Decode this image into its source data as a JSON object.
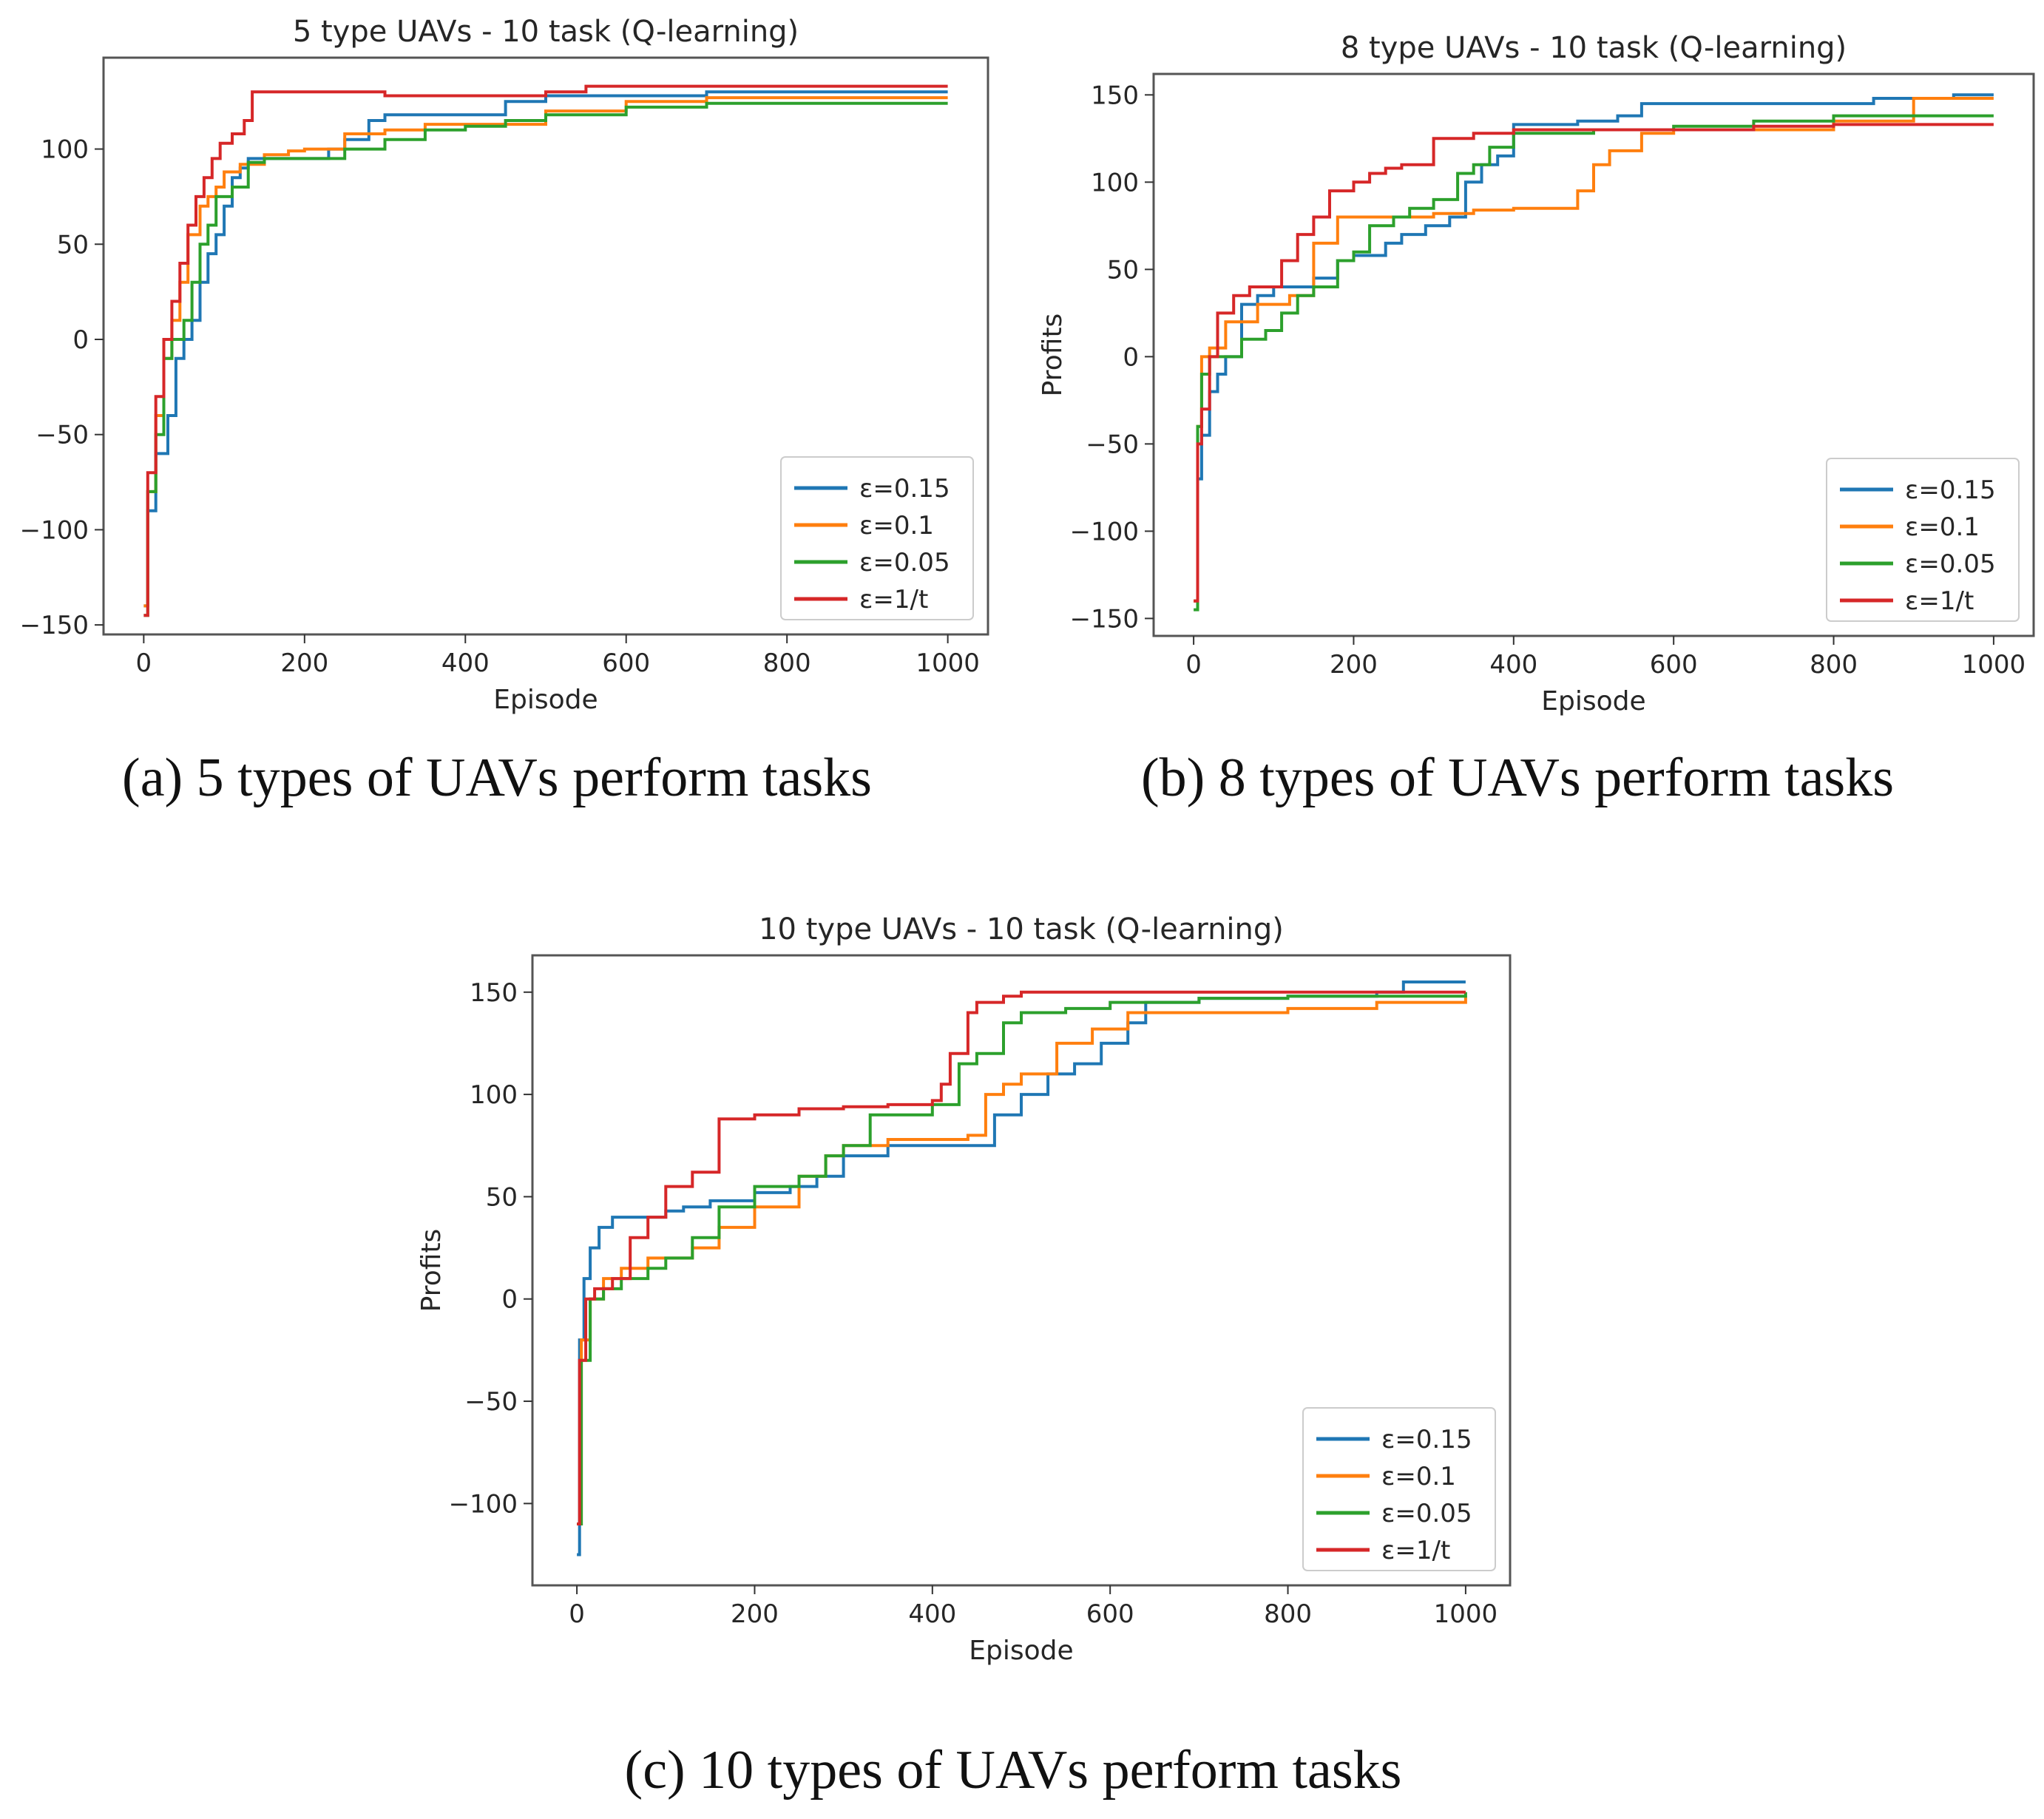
{
  "figure": {
    "captions": [
      "(a) 5 types of UAVs perform tasks",
      "(b) 8 types of UAVs perform tasks",
      "(c) 10 types of UAVs perform tasks"
    ]
  },
  "colors": {
    "series": [
      "#1f77b4",
      "#ff7f0e",
      "#2ca02c",
      "#d62728"
    ]
  },
  "chart_data": [
    {
      "type": "line",
      "title": "5 type UAVs - 10 task (Q-learning)",
      "xlabel": "Episode",
      "ylabel": "",
      "xlim": [
        -50,
        1050
      ],
      "ylim": [
        -155,
        148
      ],
      "xticks": [
        0,
        200,
        400,
        600,
        800,
        1000
      ],
      "yticks": [
        -150,
        -100,
        -50,
        0,
        50,
        100
      ],
      "legend_position": "lower right",
      "series": [
        {
          "name": "ε=0.15",
          "x": [
            0,
            5,
            15,
            30,
            40,
            50,
            60,
            70,
            80,
            90,
            100,
            110,
            120,
            130,
            200,
            230,
            250,
            280,
            300,
            450,
            500,
            600,
            700,
            1000
          ],
          "y": [
            -140,
            -90,
            -60,
            -40,
            -10,
            0,
            10,
            30,
            45,
            55,
            70,
            85,
            90,
            95,
            95,
            100,
            105,
            115,
            118,
            125,
            128,
            128,
            130,
            130
          ]
        },
        {
          "name": "ε=0.1",
          "x": [
            0,
            5,
            15,
            25,
            35,
            45,
            55,
            70,
            80,
            90,
            100,
            120,
            150,
            180,
            200,
            250,
            300,
            350,
            400,
            500,
            600,
            700,
            1000
          ],
          "y": [
            -140,
            -80,
            -40,
            -10,
            10,
            30,
            55,
            70,
            75,
            80,
            88,
            92,
            97,
            99,
            100,
            108,
            110,
            113,
            113,
            120,
            125,
            127,
            127
          ]
        },
        {
          "name": "ε=0.05",
          "x": [
            0,
            5,
            15,
            25,
            35,
            50,
            60,
            70,
            80,
            90,
            110,
            130,
            150,
            200,
            250,
            300,
            350,
            400,
            450,
            500,
            600,
            700,
            1000
          ],
          "y": [
            -145,
            -80,
            -50,
            -10,
            0,
            10,
            30,
            50,
            60,
            75,
            80,
            93,
            95,
            95,
            100,
            105,
            110,
            112,
            115,
            118,
            122,
            124,
            124
          ]
        },
        {
          "name": "ε=1/t",
          "x": [
            0,
            5,
            15,
            25,
            35,
            45,
            55,
            65,
            75,
            85,
            95,
            110,
            125,
            135,
            200,
            300,
            400,
            500,
            550,
            700,
            1000
          ],
          "y": [
            -145,
            -70,
            -30,
            0,
            20,
            40,
            60,
            75,
            85,
            95,
            103,
            108,
            115,
            130,
            130,
            128,
            128,
            130,
            133,
            133,
            133
          ]
        }
      ]
    },
    {
      "type": "line",
      "title": "8 type UAVs - 10 task (Q-learning)",
      "xlabel": "Episode",
      "ylabel": "Profits",
      "xlim": [
        -50,
        1050
      ],
      "ylim": [
        -160,
        162
      ],
      "xticks": [
        0,
        200,
        400,
        600,
        800,
        1000
      ],
      "yticks": [
        -150,
        -100,
        -50,
        0,
        50,
        100,
        150
      ],
      "legend_position": "lower right",
      "series": [
        {
          "name": "ε=0.15",
          "x": [
            0,
            5,
            10,
            20,
            30,
            40,
            60,
            80,
            100,
            120,
            150,
            180,
            200,
            240,
            260,
            290,
            320,
            340,
            360,
            380,
            400,
            480,
            530,
            560,
            650,
            750,
            850,
            950,
            1000
          ],
          "y": [
            -140,
            -70,
            -45,
            -20,
            -10,
            0,
            30,
            35,
            40,
            40,
            45,
            55,
            58,
            65,
            70,
            75,
            80,
            100,
            110,
            115,
            133,
            135,
            138,
            145,
            145,
            145,
            148,
            150,
            150
          ]
        },
        {
          "name": "ε=0.1",
          "x": [
            0,
            5,
            10,
            20,
            40,
            80,
            120,
            150,
            180,
            200,
            250,
            300,
            350,
            400,
            460,
            480,
            500,
            520,
            560,
            600,
            800,
            900,
            1000
          ],
          "y": [
            -140,
            -40,
            0,
            5,
            20,
            30,
            35,
            65,
            80,
            80,
            80,
            82,
            84,
            85,
            85,
            95,
            110,
            118,
            128,
            130,
            135,
            148,
            148
          ]
        },
        {
          "name": "ε=0.05",
          "x": [
            0,
            5,
            10,
            20,
            40,
            60,
            90,
            110,
            130,
            150,
            180,
            200,
            220,
            250,
            270,
            300,
            330,
            350,
            370,
            400,
            500,
            600,
            700,
            800,
            1000
          ],
          "y": [
            -145,
            -40,
            -10,
            0,
            0,
            10,
            15,
            25,
            35,
            40,
            55,
            60,
            75,
            80,
            85,
            90,
            105,
            110,
            120,
            128,
            130,
            132,
            135,
            138,
            138
          ]
        },
        {
          "name": "ε=1/t",
          "x": [
            0,
            5,
            10,
            20,
            30,
            50,
            70,
            100,
            110,
            130,
            150,
            170,
            200,
            220,
            240,
            260,
            290,
            300,
            350,
            400,
            500,
            600,
            700,
            800,
            1000
          ],
          "y": [
            -140,
            -50,
            -30,
            0,
            25,
            35,
            40,
            40,
            55,
            70,
            80,
            95,
            100,
            105,
            108,
            110,
            110,
            125,
            128,
            130,
            130,
            130,
            132,
            133,
            133
          ]
        }
      ]
    },
    {
      "type": "line",
      "title": "10 type UAVs - 10 task (Q-learning)",
      "xlabel": "Episode",
      "ylabel": "Profits",
      "xlim": [
        -50,
        1050
      ],
      "ylim": [
        -140,
        168
      ],
      "xticks": [
        0,
        200,
        400,
        600,
        800,
        1000
      ],
      "yticks": [
        -100,
        -50,
        0,
        50,
        100,
        150
      ],
      "legend_position": "lower right",
      "series": [
        {
          "name": "ε=0.15",
          "x": [
            0,
            3,
            8,
            15,
            25,
            40,
            60,
            80,
            100,
            120,
            150,
            200,
            240,
            270,
            300,
            350,
            400,
            460,
            470,
            500,
            530,
            560,
            590,
            620,
            640,
            700,
            800,
            900,
            930,
            1000
          ],
          "y": [
            -125,
            -20,
            10,
            25,
            35,
            40,
            40,
            40,
            43,
            45,
            48,
            52,
            55,
            60,
            70,
            75,
            75,
            75,
            90,
            100,
            110,
            115,
            125,
            135,
            145,
            147,
            148,
            150,
            155,
            155
          ]
        },
        {
          "name": "ε=0.1",
          "x": [
            0,
            5,
            15,
            30,
            50,
            80,
            100,
            130,
            160,
            200,
            250,
            280,
            300,
            350,
            400,
            440,
            460,
            480,
            500,
            540,
            580,
            620,
            700,
            800,
            900,
            1000
          ],
          "y": [
            -110,
            -20,
            0,
            10,
            15,
            20,
            20,
            25,
            35,
            45,
            60,
            70,
            75,
            78,
            78,
            80,
            100,
            105,
            110,
            125,
            132,
            140,
            140,
            142,
            145,
            148
          ]
        },
        {
          "name": "ε=0.05",
          "x": [
            0,
            5,
            15,
            30,
            50,
            80,
            100,
            130,
            160,
            200,
            250,
            280,
            300,
            330,
            400,
            430,
            450,
            480,
            500,
            550,
            600,
            700,
            800,
            1000
          ],
          "y": [
            -110,
            -30,
            0,
            5,
            10,
            15,
            20,
            30,
            45,
            55,
            60,
            70,
            75,
            90,
            95,
            115,
            120,
            135,
            140,
            142,
            145,
            147,
            148,
            150
          ]
        },
        {
          "name": "ε=1/t",
          "x": [
            0,
            3,
            10,
            20,
            40,
            60,
            80,
            100,
            130,
            160,
            200,
            250,
            300,
            350,
            400,
            410,
            420,
            440,
            450,
            480,
            500,
            600,
            800,
            1000
          ],
          "y": [
            -110,
            -30,
            0,
            5,
            10,
            30,
            40,
            55,
            62,
            88,
            90,
            93,
            94,
            95,
            97,
            105,
            120,
            140,
            145,
            148,
            150,
            150,
            150,
            150
          ]
        }
      ]
    }
  ]
}
